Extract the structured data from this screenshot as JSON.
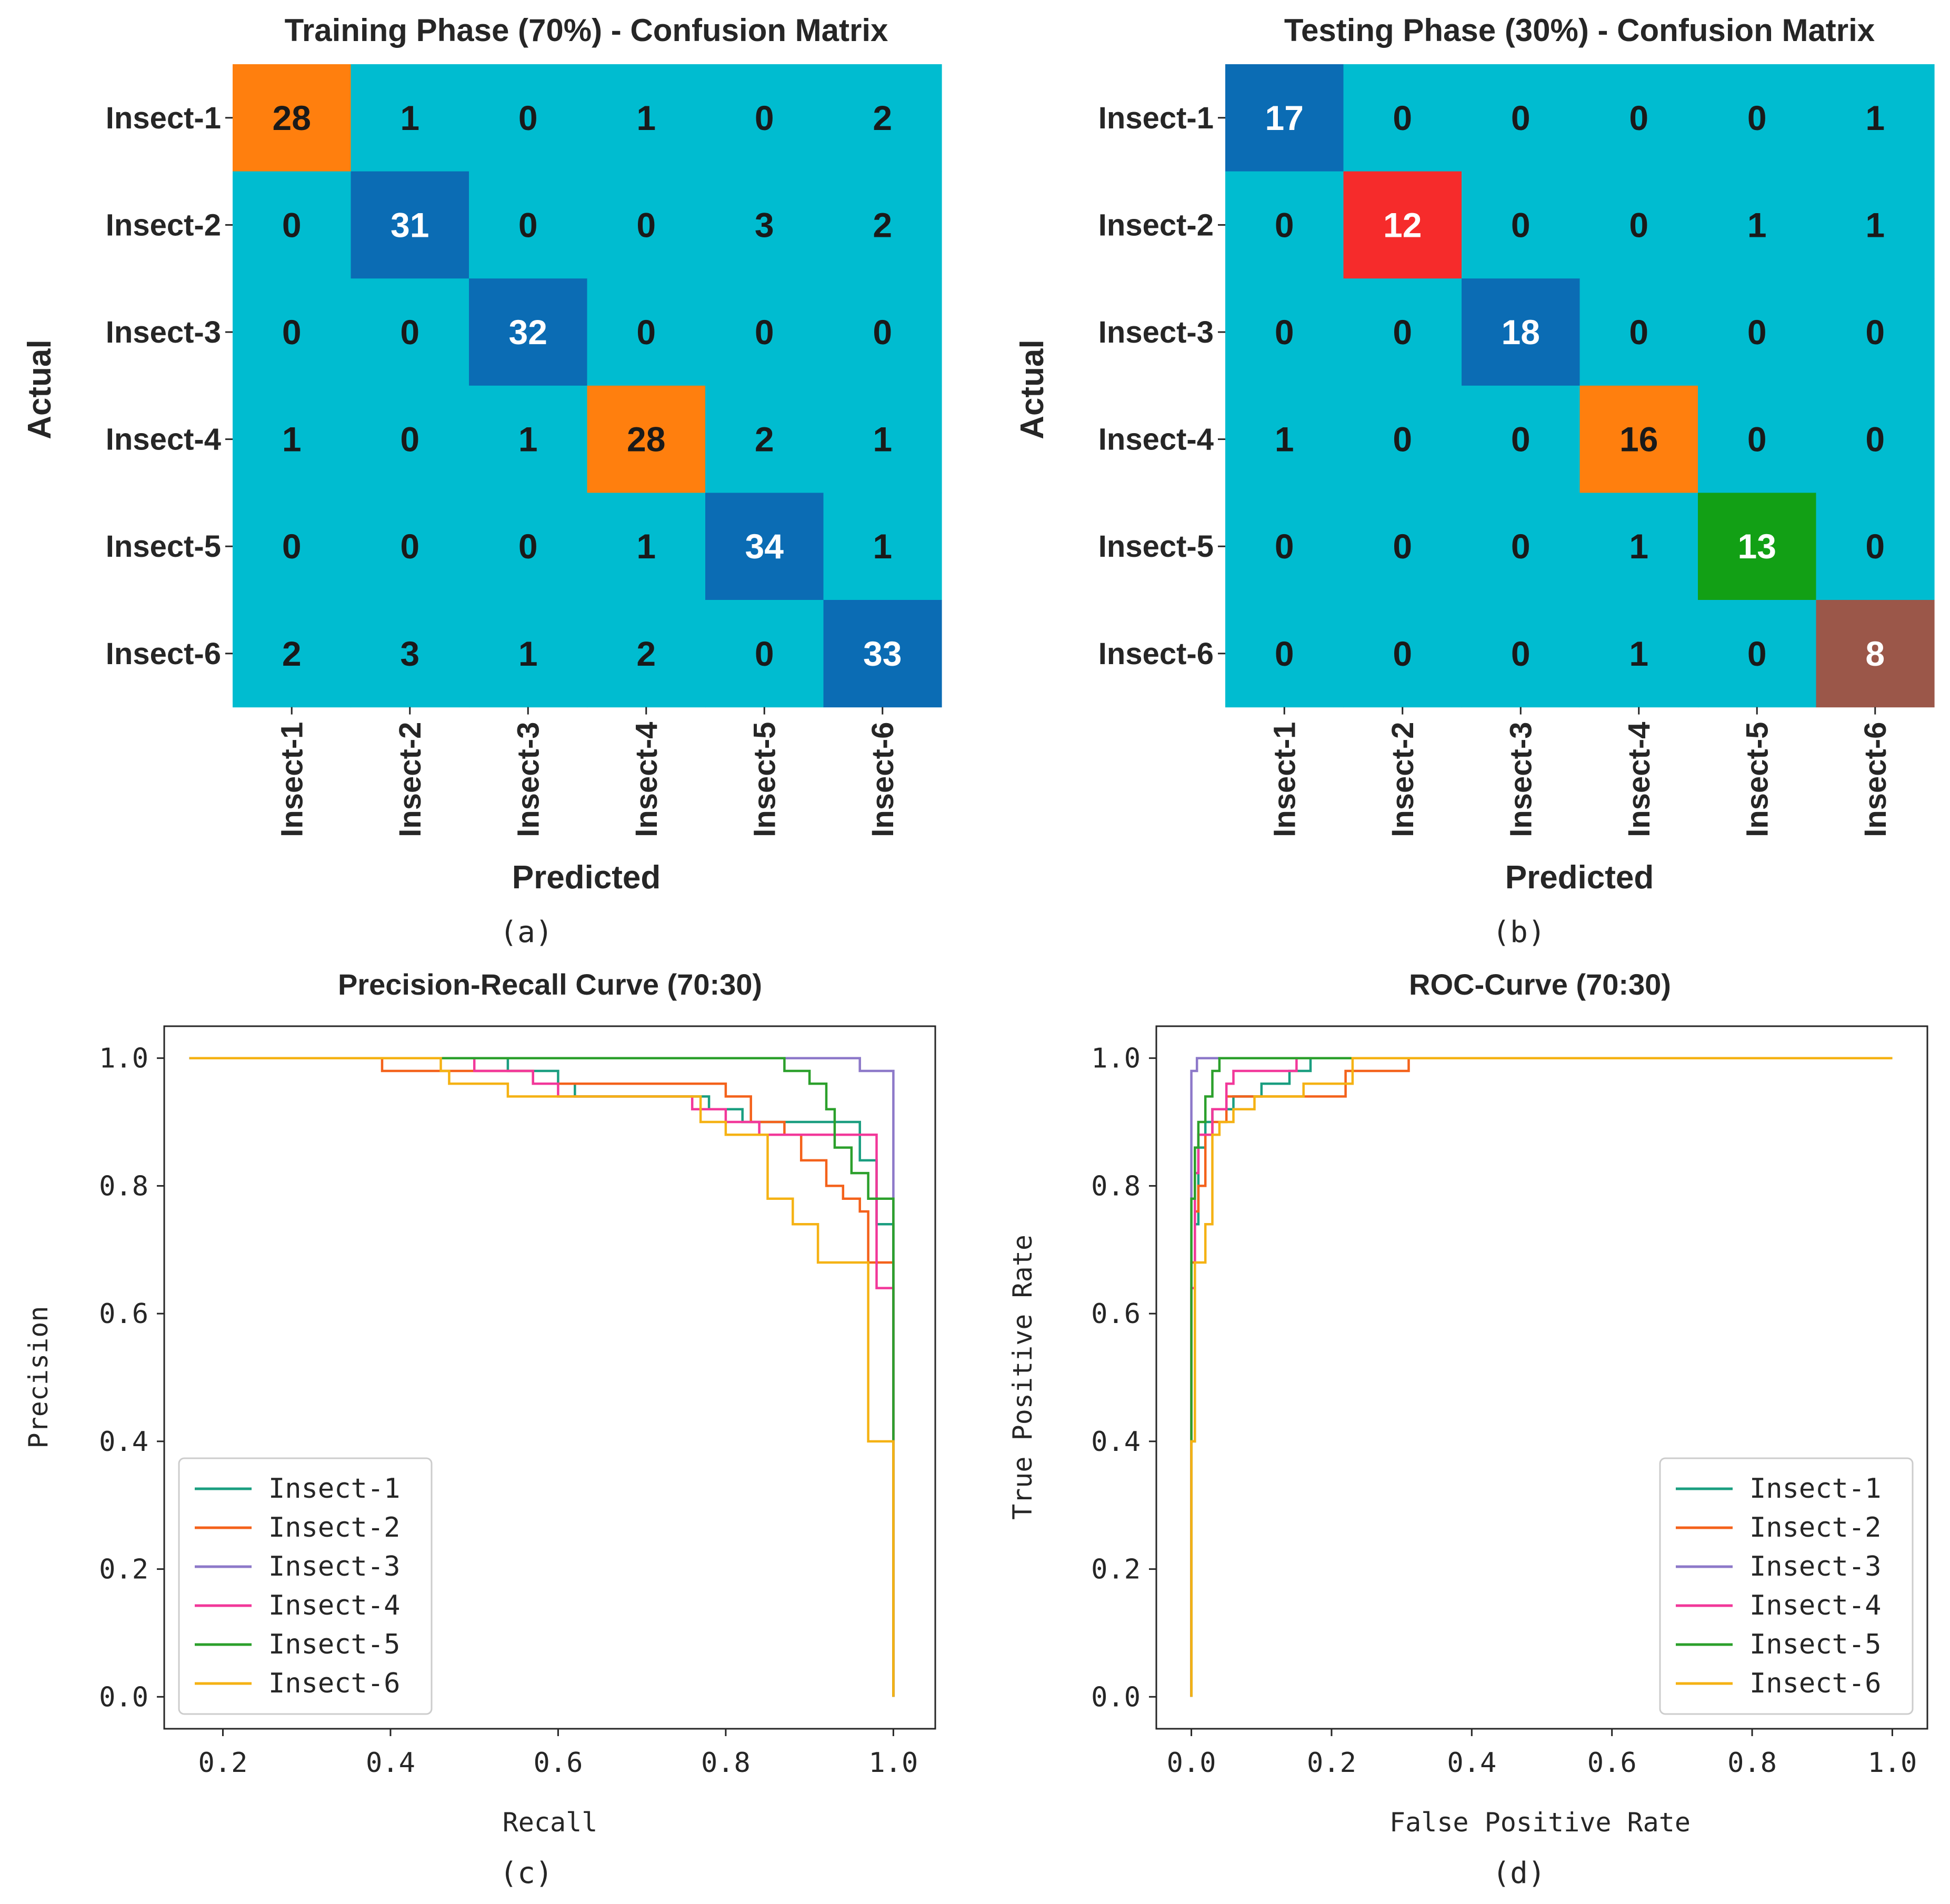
{
  "chart_data": [
    {
      "type": "heatmap",
      "panel": "(a)",
      "title": "Training Phase (70%) - Confusion Matrix",
      "xlabel": "Predicted",
      "ylabel": "Actual",
      "labels": [
        "Insect-1",
        "Insect-2",
        "Insect-3",
        "Insect-4",
        "Insect-5",
        "Insect-6"
      ],
      "matrix": [
        [
          28,
          1,
          0,
          1,
          0,
          2
        ],
        [
          0,
          31,
          0,
          0,
          3,
          2
        ],
        [
          0,
          0,
          32,
          0,
          0,
          0
        ],
        [
          1,
          0,
          1,
          28,
          2,
          1
        ],
        [
          0,
          0,
          0,
          1,
          34,
          1
        ],
        [
          2,
          3,
          1,
          2,
          0,
          33
        ]
      ]
    },
    {
      "type": "heatmap",
      "panel": "(b)",
      "title": "Testing Phase (30%) - Confusion Matrix",
      "xlabel": "Predicted",
      "ylabel": "Actual",
      "labels": [
        "Insect-1",
        "Insect-2",
        "Insect-3",
        "Insect-4",
        "Insect-5",
        "Insect-6"
      ],
      "matrix": [
        [
          17,
          0,
          0,
          0,
          0,
          1
        ],
        [
          0,
          12,
          0,
          0,
          1,
          1
        ],
        [
          0,
          0,
          18,
          0,
          0,
          0
        ],
        [
          1,
          0,
          0,
          16,
          0,
          0
        ],
        [
          0,
          0,
          0,
          1,
          13,
          0
        ],
        [
          0,
          0,
          0,
          1,
          0,
          8
        ]
      ]
    },
    {
      "type": "line",
      "panel": "(c)",
      "title": "Precision-Recall Curve (70:30)",
      "xlabel": "Recall",
      "ylabel": "Precision",
      "xlim": [
        0.13,
        1.05
      ],
      "ylim": [
        -0.05,
        1.05
      ],
      "xticks": [
        0.2,
        0.4,
        0.6,
        0.8,
        1.0
      ],
      "yticks": [
        0.0,
        0.2,
        0.4,
        0.6,
        0.8,
        1.0
      ],
      "legend": "lower-left",
      "series": [
        {
          "name": "Insect-1",
          "points": [
            [
              0.16,
              1.0
            ],
            [
              0.54,
              1.0
            ],
            [
              0.54,
              0.98
            ],
            [
              0.6,
              0.98
            ],
            [
              0.6,
              0.96
            ],
            [
              0.62,
              0.96
            ],
            [
              0.62,
              0.94
            ],
            [
              0.78,
              0.94
            ],
            [
              0.78,
              0.92
            ],
            [
              0.82,
              0.92
            ],
            [
              0.82,
              0.9
            ],
            [
              0.96,
              0.9
            ],
            [
              0.96,
              0.84
            ],
            [
              0.98,
              0.84
            ],
            [
              0.98,
              0.74
            ],
            [
              1.0,
              0.74
            ],
            [
              1.0,
              0.0
            ]
          ]
        },
        {
          "name": "Insect-2",
          "points": [
            [
              0.16,
              1.0
            ],
            [
              0.39,
              1.0
            ],
            [
              0.39,
              0.98
            ],
            [
              0.57,
              0.98
            ],
            [
              0.57,
              0.96
            ],
            [
              0.8,
              0.96
            ],
            [
              0.8,
              0.94
            ],
            [
              0.83,
              0.94
            ],
            [
              0.83,
              0.9
            ],
            [
              0.87,
              0.9
            ],
            [
              0.87,
              0.88
            ],
            [
              0.89,
              0.88
            ],
            [
              0.89,
              0.84
            ],
            [
              0.92,
              0.84
            ],
            [
              0.92,
              0.8
            ],
            [
              0.94,
              0.8
            ],
            [
              0.94,
              0.78
            ],
            [
              0.96,
              0.78
            ],
            [
              0.96,
              0.76
            ],
            [
              0.97,
              0.76
            ],
            [
              0.97,
              0.68
            ],
            [
              1.0,
              0.68
            ],
            [
              1.0,
              0.0
            ]
          ]
        },
        {
          "name": "Insect-3",
          "points": [
            [
              0.16,
              1.0
            ],
            [
              0.96,
              1.0
            ],
            [
              0.96,
              0.98
            ],
            [
              1.0,
              0.98
            ],
            [
              1.0,
              0.0
            ]
          ]
        },
        {
          "name": "Insect-4",
          "points": [
            [
              0.16,
              1.0
            ],
            [
              0.5,
              1.0
            ],
            [
              0.5,
              0.98
            ],
            [
              0.57,
              0.98
            ],
            [
              0.57,
              0.96
            ],
            [
              0.6,
              0.96
            ],
            [
              0.6,
              0.94
            ],
            [
              0.76,
              0.94
            ],
            [
              0.76,
              0.92
            ],
            [
              0.8,
              0.92
            ],
            [
              0.8,
              0.9
            ],
            [
              0.84,
              0.9
            ],
            [
              0.84,
              0.88
            ],
            [
              0.98,
              0.88
            ],
            [
              0.98,
              0.64
            ],
            [
              1.0,
              0.64
            ],
            [
              1.0,
              0.0
            ]
          ]
        },
        {
          "name": "Insect-5",
          "points": [
            [
              0.16,
              1.0
            ],
            [
              0.87,
              1.0
            ],
            [
              0.87,
              0.98
            ],
            [
              0.9,
              0.98
            ],
            [
              0.9,
              0.96
            ],
            [
              0.92,
              0.96
            ],
            [
              0.92,
              0.92
            ],
            [
              0.93,
              0.92
            ],
            [
              0.93,
              0.86
            ],
            [
              0.95,
              0.86
            ],
            [
              0.95,
              0.82
            ],
            [
              0.97,
              0.82
            ],
            [
              0.97,
              0.78
            ],
            [
              1.0,
              0.78
            ],
            [
              1.0,
              0.0
            ]
          ]
        },
        {
          "name": "Insect-6",
          "points": [
            [
              0.16,
              1.0
            ],
            [
              0.46,
              1.0
            ],
            [
              0.46,
              0.98
            ],
            [
              0.47,
              0.98
            ],
            [
              0.47,
              0.96
            ],
            [
              0.54,
              0.96
            ],
            [
              0.54,
              0.94
            ],
            [
              0.77,
              0.94
            ],
            [
              0.77,
              0.9
            ],
            [
              0.8,
              0.9
            ],
            [
              0.8,
              0.88
            ],
            [
              0.85,
              0.88
            ],
            [
              0.85,
              0.78
            ],
            [
              0.88,
              0.78
            ],
            [
              0.88,
              0.74
            ],
            [
              0.91,
              0.74
            ],
            [
              0.91,
              0.68
            ],
            [
              0.97,
              0.68
            ],
            [
              0.97,
              0.4
            ],
            [
              1.0,
              0.4
            ],
            [
              1.0,
              0.0
            ]
          ]
        }
      ]
    },
    {
      "type": "line",
      "panel": "(d)",
      "title": "ROC-Curve (70:30)",
      "xlabel": "False Positive Rate",
      "ylabel": "True Positive Rate",
      "xlim": [
        -0.05,
        1.05
      ],
      "ylim": [
        -0.05,
        1.05
      ],
      "xticks": [
        0.0,
        0.2,
        0.4,
        0.6,
        0.8,
        1.0
      ],
      "yticks": [
        0.0,
        0.2,
        0.4,
        0.6,
        0.8,
        1.0
      ],
      "legend": "lower-right",
      "series": [
        {
          "name": "Insect-1",
          "points": [
            [
              0,
              0
            ],
            [
              0,
              0.4
            ],
            [
              0.005,
              0.4
            ],
            [
              0.005,
              0.74
            ],
            [
              0.01,
              0.74
            ],
            [
              0.01,
              0.86
            ],
            [
              0.02,
              0.86
            ],
            [
              0.02,
              0.9
            ],
            [
              0.03,
              0.9
            ],
            [
              0.03,
              0.92
            ],
            [
              0.06,
              0.92
            ],
            [
              0.06,
              0.94
            ],
            [
              0.1,
              0.94
            ],
            [
              0.1,
              0.96
            ],
            [
              0.14,
              0.96
            ],
            [
              0.14,
              0.98
            ],
            [
              0.17,
              0.98
            ],
            [
              0.17,
              1.0
            ],
            [
              1.0,
              1.0
            ]
          ]
        },
        {
          "name": "Insect-2",
          "points": [
            [
              0,
              0
            ],
            [
              0,
              0.68
            ],
            [
              0.005,
              0.68
            ],
            [
              0.005,
              0.76
            ],
            [
              0.01,
              0.76
            ],
            [
              0.01,
              0.8
            ],
            [
              0.02,
              0.8
            ],
            [
              0.02,
              0.88
            ],
            [
              0.03,
              0.88
            ],
            [
              0.03,
              0.9
            ],
            [
              0.05,
              0.9
            ],
            [
              0.05,
              0.94
            ],
            [
              0.22,
              0.94
            ],
            [
              0.22,
              0.98
            ],
            [
              0.31,
              0.98
            ],
            [
              0.31,
              1.0
            ],
            [
              1.0,
              1.0
            ]
          ]
        },
        {
          "name": "Insect-3",
          "points": [
            [
              0,
              0
            ],
            [
              0,
              0.98
            ],
            [
              0.008,
              0.98
            ],
            [
              0.008,
              1.0
            ],
            [
              1.0,
              1.0
            ]
          ]
        },
        {
          "name": "Insect-4",
          "points": [
            [
              0,
              0
            ],
            [
              0,
              0.64
            ],
            [
              0.005,
              0.64
            ],
            [
              0.005,
              0.82
            ],
            [
              0.01,
              0.82
            ],
            [
              0.01,
              0.88
            ],
            [
              0.03,
              0.88
            ],
            [
              0.03,
              0.92
            ],
            [
              0.05,
              0.92
            ],
            [
              0.05,
              0.96
            ],
            [
              0.06,
              0.96
            ],
            [
              0.06,
              0.98
            ],
            [
              0.15,
              0.98
            ],
            [
              0.15,
              1.0
            ],
            [
              1.0,
              1.0
            ]
          ]
        },
        {
          "name": "Insect-5",
          "points": [
            [
              0,
              0
            ],
            [
              0,
              0.78
            ],
            [
              0.005,
              0.78
            ],
            [
              0.005,
              0.86
            ],
            [
              0.01,
              0.86
            ],
            [
              0.01,
              0.9
            ],
            [
              0.02,
              0.9
            ],
            [
              0.02,
              0.94
            ],
            [
              0.03,
              0.94
            ],
            [
              0.03,
              0.98
            ],
            [
              0.04,
              0.98
            ],
            [
              0.04,
              1.0
            ],
            [
              1.0,
              1.0
            ]
          ]
        },
        {
          "name": "Insect-6",
          "points": [
            [
              0,
              0
            ],
            [
              0,
              0.4
            ],
            [
              0.005,
              0.4
            ],
            [
              0.005,
              0.68
            ],
            [
              0.02,
              0.68
            ],
            [
              0.02,
              0.74
            ],
            [
              0.03,
              0.74
            ],
            [
              0.03,
              0.8
            ],
            [
              0.03,
              0.88
            ],
            [
              0.04,
              0.88
            ],
            [
              0.04,
              0.9
            ],
            [
              0.06,
              0.9
            ],
            [
              0.06,
              0.92
            ],
            [
              0.09,
              0.92
            ],
            [
              0.09,
              0.94
            ],
            [
              0.16,
              0.94
            ],
            [
              0.16,
              0.96
            ],
            [
              0.23,
              0.96
            ],
            [
              0.23,
              1.0
            ],
            [
              1.0,
              1.0
            ]
          ]
        }
      ]
    }
  ],
  "colors": {
    "heat_default": "#00bcd0",
    "heat_dark_blue": "#0b6cb4",
    "heat_orange": "#ff7f0e",
    "heat_red": "#f62b2b",
    "heat_green": "#12a015",
    "heat_brown": "#9b5749",
    "series": [
      "#1a9e80",
      "#f4621b",
      "#8d79c9",
      "#f2389a",
      "#2ca02c",
      "#f5b214"
    ],
    "cell_text_dark": "#1a1a1a",
    "cell_text_light": "#ffffff"
  },
  "heat_cell_colors": {
    "a": [
      [
        "heat_orange",
        0,
        0
      ],
      [
        "heat_dark_blue",
        1,
        1
      ],
      [
        "heat_dark_blue",
        2,
        2
      ],
      [
        "heat_orange",
        3,
        3
      ],
      [
        "heat_dark_blue",
        4,
        4
      ],
      [
        "heat_dark_blue",
        5,
        5
      ]
    ],
    "b": [
      [
        "heat_dark_blue",
        0,
        0
      ],
      [
        "heat_red",
        1,
        1
      ],
      [
        "heat_dark_blue",
        2,
        2
      ],
      [
        "heat_orange",
        3,
        3
      ],
      [
        "heat_green",
        4,
        4
      ],
      [
        "heat_brown",
        5,
        5
      ]
    ]
  }
}
